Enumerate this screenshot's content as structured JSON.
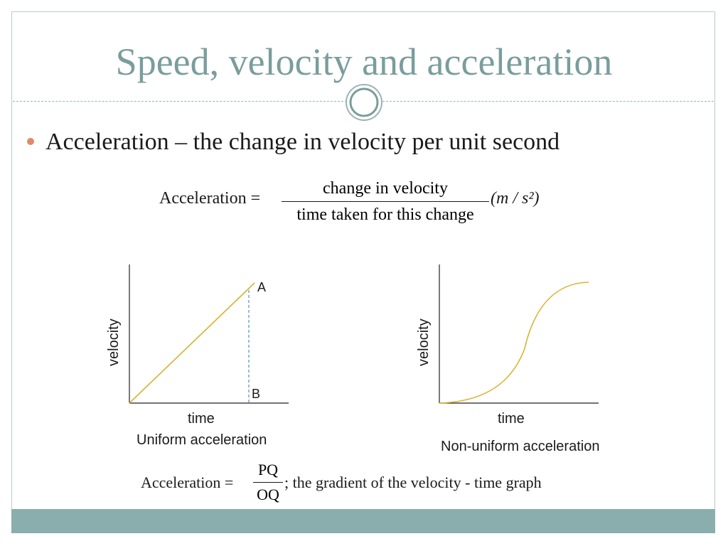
{
  "slide": {
    "title": "Speed, velocity and acceleration",
    "bullet": "Acceleration – the change in velocity per  unit second"
  },
  "equation1": {
    "lhs": "Acceleration =",
    "numerator": "change in velocity",
    "denominator": "time taken for this change",
    "units": "(m / s²)"
  },
  "equation2": {
    "lhs": "Acceleration =",
    "numerator": "PQ",
    "denominator": "OQ",
    "rest": "; the gradient of the velocity - time graph"
  },
  "chart_data": [
    {
      "type": "line",
      "title": "Uniform acceleration",
      "xlabel": "time",
      "ylabel": "velocity",
      "points": [
        [
          0,
          0
        ],
        [
          1,
          1
        ]
      ],
      "annotations": [
        {
          "label": "A",
          "at": "line end"
        },
        {
          "label": "B",
          "at": "foot of dashed line on time axis"
        }
      ],
      "grid": false
    },
    {
      "type": "line",
      "title": "Non-uniform acceleration",
      "xlabel": "time",
      "ylabel": "velocity",
      "curve": "S-shaped",
      "grid": false
    }
  ],
  "colors": {
    "title": "#7a9d9d",
    "accent_bar": "#8aaeae",
    "bullet": "#e08a6a",
    "curve": "#d9b230",
    "dashed": "#4a8fd6"
  }
}
